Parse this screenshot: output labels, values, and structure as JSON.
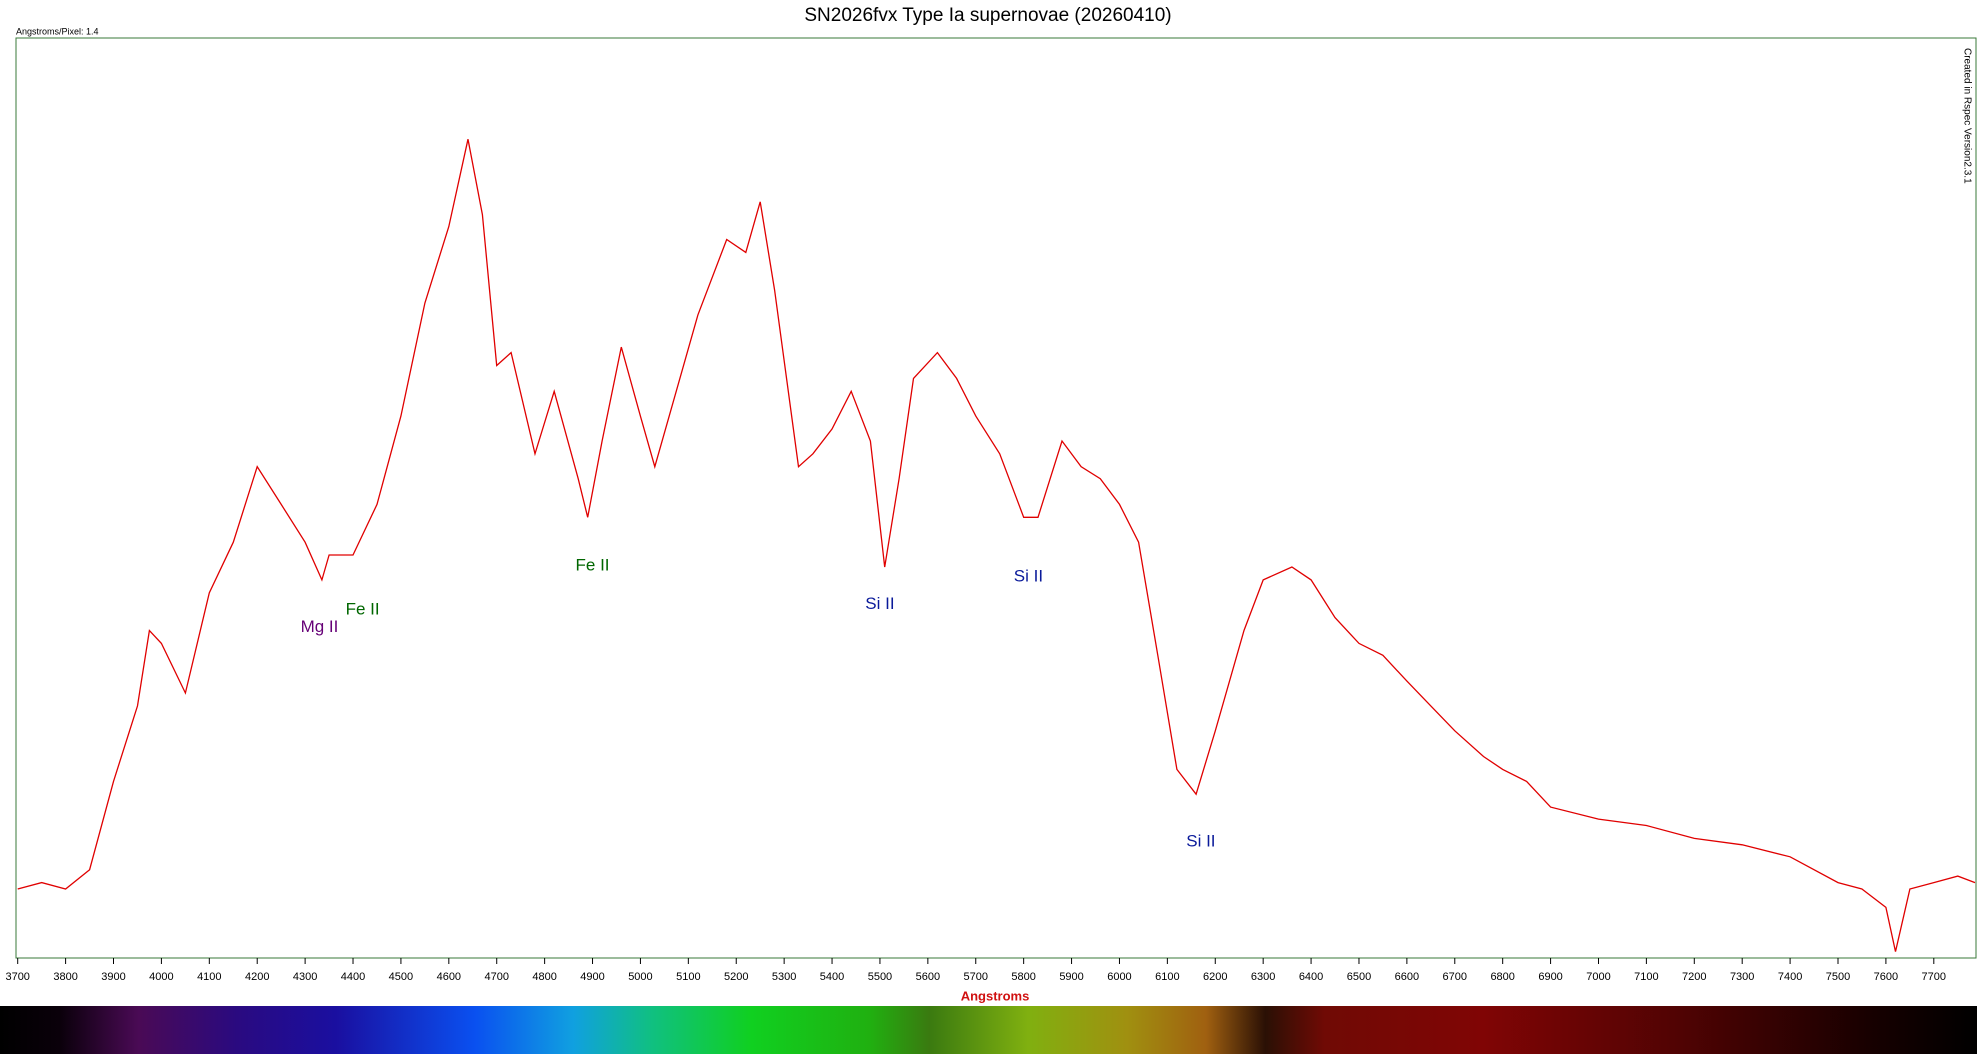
{
  "chart_data": {
    "type": "line",
    "title": "SN2026fvx Type Ia supernovae (20260410)",
    "subtitle": "Angstroms/Pixel: 1.4",
    "side_note": "Created in Rspec Version2.3.1",
    "xlabel": "Angstroms",
    "color": "#e00000",
    "x": [
      3700,
      3750,
      3800,
      3850,
      3900,
      3950,
      3975,
      4000,
      4050,
      4100,
      4150,
      4200,
      4250,
      4300,
      4335,
      4350,
      4400,
      4450,
      4500,
      4550,
      4600,
      4640,
      4670,
      4700,
      4730,
      4780,
      4820,
      4870,
      4890,
      4920,
      4960,
      5000,
      5030,
      5060,
      5120,
      5180,
      5220,
      5250,
      5280,
      5330,
      5360,
      5400,
      5440,
      5480,
      5510,
      5540,
      5570,
      5620,
      5660,
      5700,
      5750,
      5800,
      5830,
      5880,
      5920,
      5960,
      6000,
      6040,
      6080,
      6120,
      6160,
      6200,
      6260,
      6300,
      6360,
      6400,
      6450,
      6500,
      6550,
      6600,
      6650,
      6700,
      6760,
      6800,
      6850,
      6900,
      7000,
      7100,
      7200,
      7300,
      7400,
      7500,
      7550,
      7600,
      7620,
      7650,
      7700,
      7750,
      7786
    ],
    "values": [
      0.075,
      0.082,
      0.075,
      0.096,
      0.192,
      0.274,
      0.356,
      0.342,
      0.288,
      0.397,
      0.452,
      0.534,
      0.493,
      0.452,
      0.411,
      0.438,
      0.438,
      0.493,
      0.589,
      0.712,
      0.795,
      0.89,
      0.808,
      0.644,
      0.658,
      0.548,
      0.616,
      0.521,
      0.479,
      0.562,
      0.664,
      0.589,
      0.534,
      0.589,
      0.699,
      0.781,
      0.767,
      0.822,
      0.726,
      0.534,
      0.548,
      0.575,
      0.616,
      0.562,
      0.425,
      0.521,
      0.63,
      0.658,
      0.63,
      0.589,
      0.548,
      0.479,
      0.479,
      0.562,
      0.534,
      0.521,
      0.493,
      0.452,
      0.329,
      0.205,
      0.178,
      0.247,
      0.356,
      0.411,
      0.425,
      0.411,
      0.37,
      0.342,
      0.329,
      0.301,
      0.274,
      0.247,
      0.219,
      0.205,
      0.192,
      0.164,
      0.151,
      0.144,
      0.13,
      0.123,
      0.11,
      0.082,
      0.075,
      0.055,
      0.007,
      0.075,
      0.082,
      0.089,
      0.082
    ],
    "xlim": [
      3700,
      7786
    ],
    "ylim": [
      0,
      1
    ],
    "xticks": [
      3700,
      3800,
      3900,
      4000,
      4100,
      4200,
      4300,
      4400,
      4500,
      4600,
      4700,
      4800,
      4900,
      5000,
      5100,
      5200,
      5300,
      5400,
      5500,
      5600,
      5700,
      5800,
      5900,
      6000,
      6100,
      6200,
      6300,
      6400,
      6500,
      6600,
      6700,
      6800,
      6900,
      7000,
      7100,
      7200,
      7300,
      7400,
      7500,
      7600,
      7700
    ],
    "annotations": [
      {
        "text": "Mg II",
        "x": 4330,
        "y": 0.359,
        "color": "#660077"
      },
      {
        "text": "Fe II",
        "x": 4420,
        "y": 0.378,
        "color": "#006600"
      },
      {
        "text": "Fe II",
        "x": 4900,
        "y": 0.426,
        "color": "#006600"
      },
      {
        "text": "Si II",
        "x": 5500,
        "y": 0.384,
        "color": "#0a1a9a"
      },
      {
        "text": "Si II",
        "x": 5810,
        "y": 0.414,
        "color": "#0a1a9a"
      },
      {
        "text": "Si II",
        "x": 6170,
        "y": 0.126,
        "color": "#0a1a9a"
      }
    ]
  }
}
